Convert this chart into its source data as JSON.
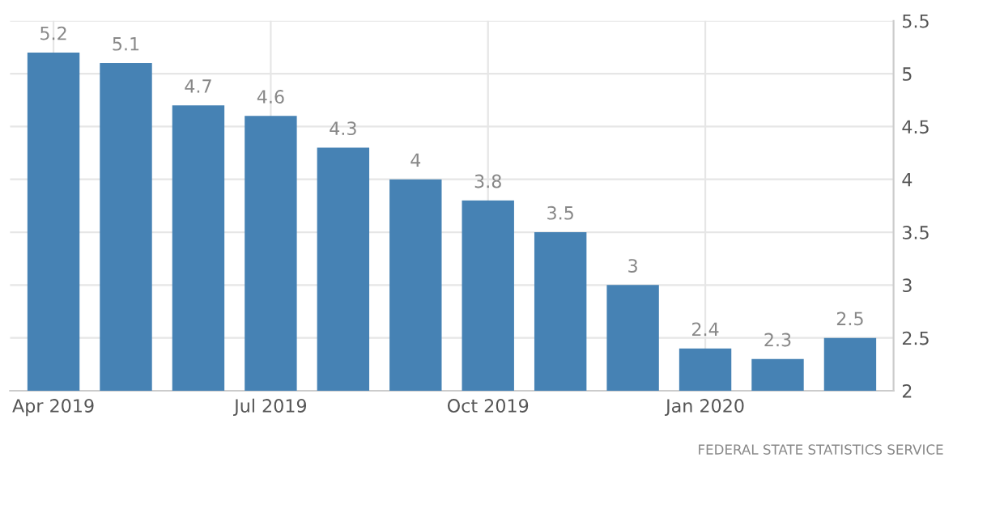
{
  "chart_data": {
    "type": "bar",
    "categories": [
      "Apr 2019",
      null,
      null,
      "Jul 2019",
      null,
      null,
      "Oct 2019",
      null,
      null,
      "Jan 2020",
      null,
      null
    ],
    "values": [
      5.2,
      5.1,
      4.7,
      4.6,
      4.3,
      4,
      3.8,
      3.5,
      3,
      2.4,
      2.3,
      2.5
    ],
    "color": "#4682b4",
    "ylim": [
      2,
      5.5
    ],
    "yticks": [
      2,
      2.5,
      3,
      3.5,
      4,
      4.5,
      5,
      5.5
    ],
    "data_labels": true,
    "grid": true,
    "annotations": [
      "FEDERAL STATE STATISTICS SERVICE"
    ]
  }
}
